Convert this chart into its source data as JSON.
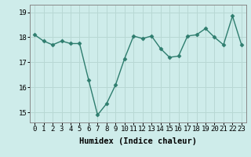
{
  "x": [
    0,
    1,
    2,
    3,
    4,
    5,
    6,
    7,
    8,
    9,
    10,
    11,
    12,
    13,
    14,
    15,
    16,
    17,
    18,
    19,
    20,
    21,
    22,
    23
  ],
  "y": [
    18.1,
    17.85,
    17.7,
    17.85,
    17.75,
    17.75,
    16.3,
    14.9,
    15.35,
    16.1,
    17.15,
    18.05,
    17.95,
    18.05,
    17.55,
    17.2,
    17.25,
    18.05,
    18.1,
    18.35,
    18.0,
    17.7,
    18.85,
    17.7
  ],
  "line_color": "#2e7d6e",
  "marker": "D",
  "marker_size": 2.5,
  "line_width": 1.0,
  "bg_color": "#ceecea",
  "grid_color": "#b8d8d4",
  "xlabel": "Humidex (Indice chaleur)",
  "xlabel_fontsize": 7.5,
  "tick_fontsize": 6.5,
  "ylim": [
    14.6,
    19.3
  ],
  "yticks": [
    15,
    16,
    17,
    18,
    19
  ],
  "xticks": [
    0,
    1,
    2,
    3,
    4,
    5,
    6,
    7,
    8,
    9,
    10,
    11,
    12,
    13,
    14,
    15,
    16,
    17,
    18,
    19,
    20,
    21,
    22,
    23
  ],
  "spine_color": "#888888",
  "axis_bg": "#ceecea"
}
